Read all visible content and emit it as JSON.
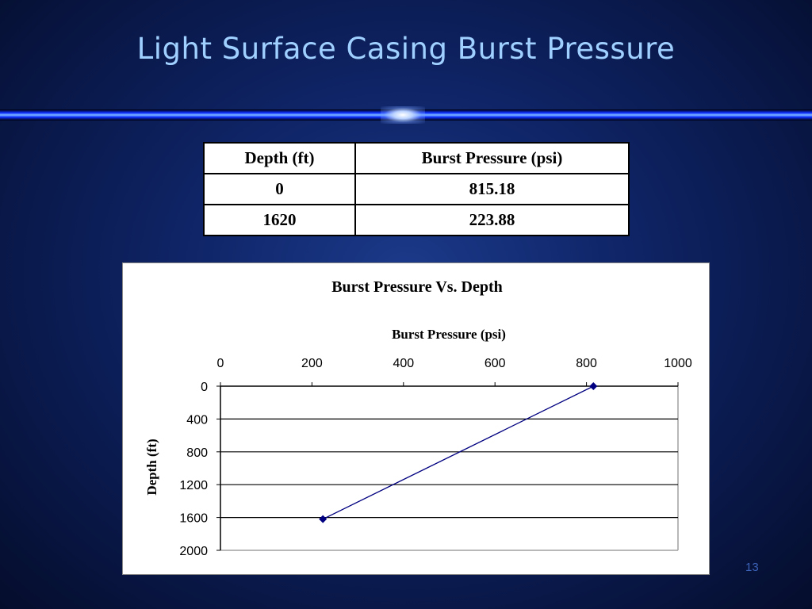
{
  "slide": {
    "title": "Light Surface Casing Burst Pressure",
    "page_number": "13"
  },
  "table": {
    "headers": [
      "Depth (ft)",
      "Burst Pressure (psi)"
    ],
    "rows": [
      [
        "0",
        "815.18"
      ],
      [
        "1620",
        "223.88"
      ]
    ]
  },
  "chart_data": {
    "type": "line",
    "title": "Burst Pressure Vs. Depth",
    "xlabel": "Burst Pressure (psi)",
    "ylabel": "Depth (ft)",
    "xlim": [
      0,
      1000
    ],
    "ylim": [
      0,
      2000
    ],
    "y_inverted": true,
    "x_axis_position": "top",
    "x_ticks": [
      "0",
      "200",
      "400",
      "600",
      "800",
      "1000"
    ],
    "y_ticks": [
      "0",
      "400",
      "800",
      "1200",
      "1600",
      "2000"
    ],
    "grid": "horizontal",
    "legend": "none",
    "series": [
      {
        "x": [
          815.18,
          223.88
        ],
        "y": [
          0,
          1620
        ],
        "color": "#000080",
        "marker": "diamond"
      }
    ]
  }
}
